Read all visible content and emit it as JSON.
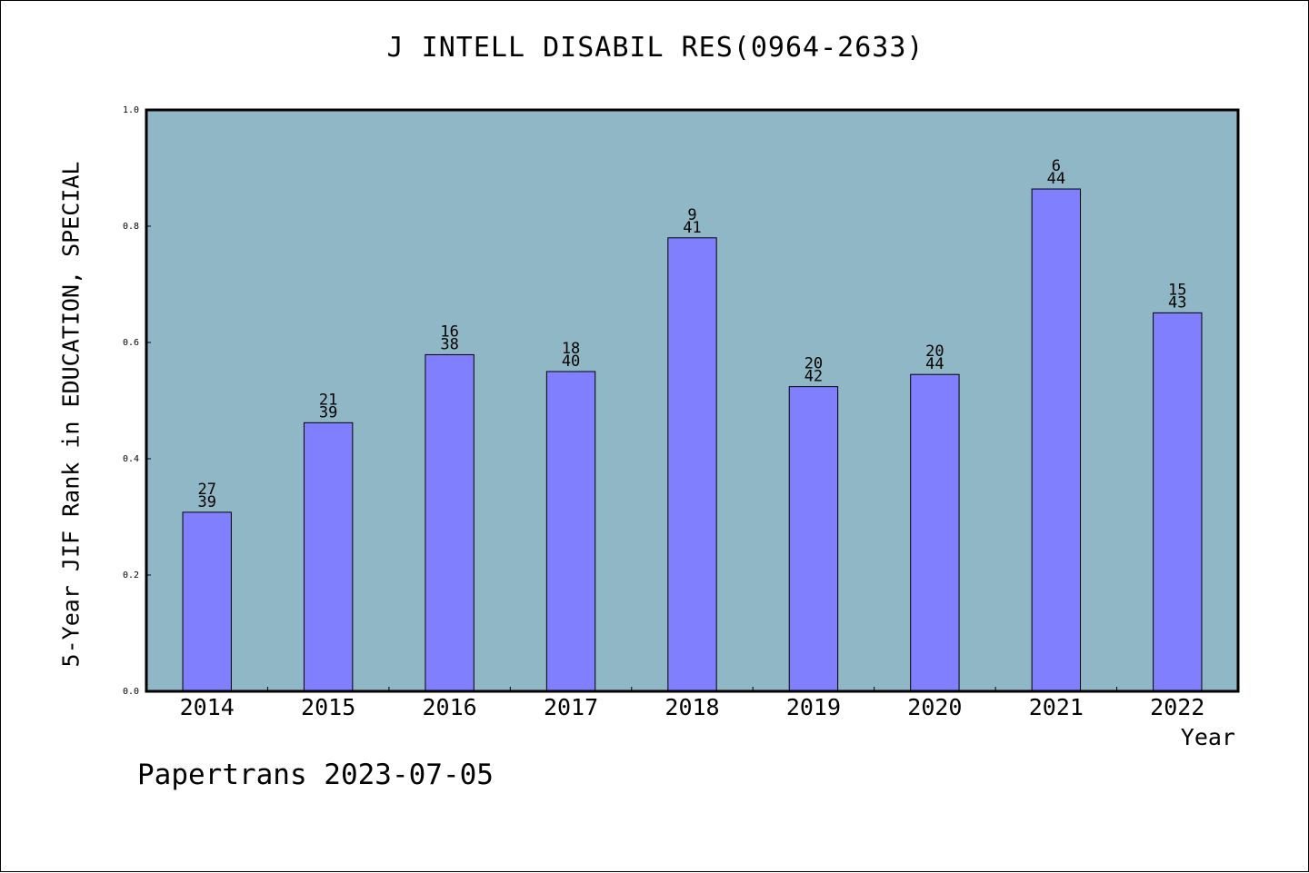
{
  "chart_data": {
    "type": "bar",
    "title": "J INTELL DISABIL RES(0964-2633)",
    "xlabel": "Year",
    "ylabel": "5-Year JIF Rank in EDUCATION, SPECIAL",
    "ylim": [
      0,
      1.0
    ],
    "yticks": [
      "0.0",
      "0.2",
      "0.4",
      "0.6",
      "0.8",
      "1.0"
    ],
    "categories": [
      "2014",
      "2015",
      "2016",
      "2017",
      "2018",
      "2019",
      "2020",
      "2021",
      "2022"
    ],
    "values": [
      0.308,
      0.462,
      0.579,
      0.55,
      0.78,
      0.524,
      0.545,
      0.864,
      0.651
    ],
    "rank": [
      "27",
      "21",
      "16",
      "18",
      "9",
      "20",
      "20",
      "6",
      "15"
    ],
    "total": [
      "39",
      "39",
      "38",
      "40",
      "41",
      "42",
      "44",
      "44",
      "43"
    ],
    "grid": false,
    "colors": {
      "plot_background": "#8fb7c6",
      "bar": "#8080ff",
      "bar_edge": "#000000"
    }
  },
  "footer": "Papertrans 2023-07-05"
}
